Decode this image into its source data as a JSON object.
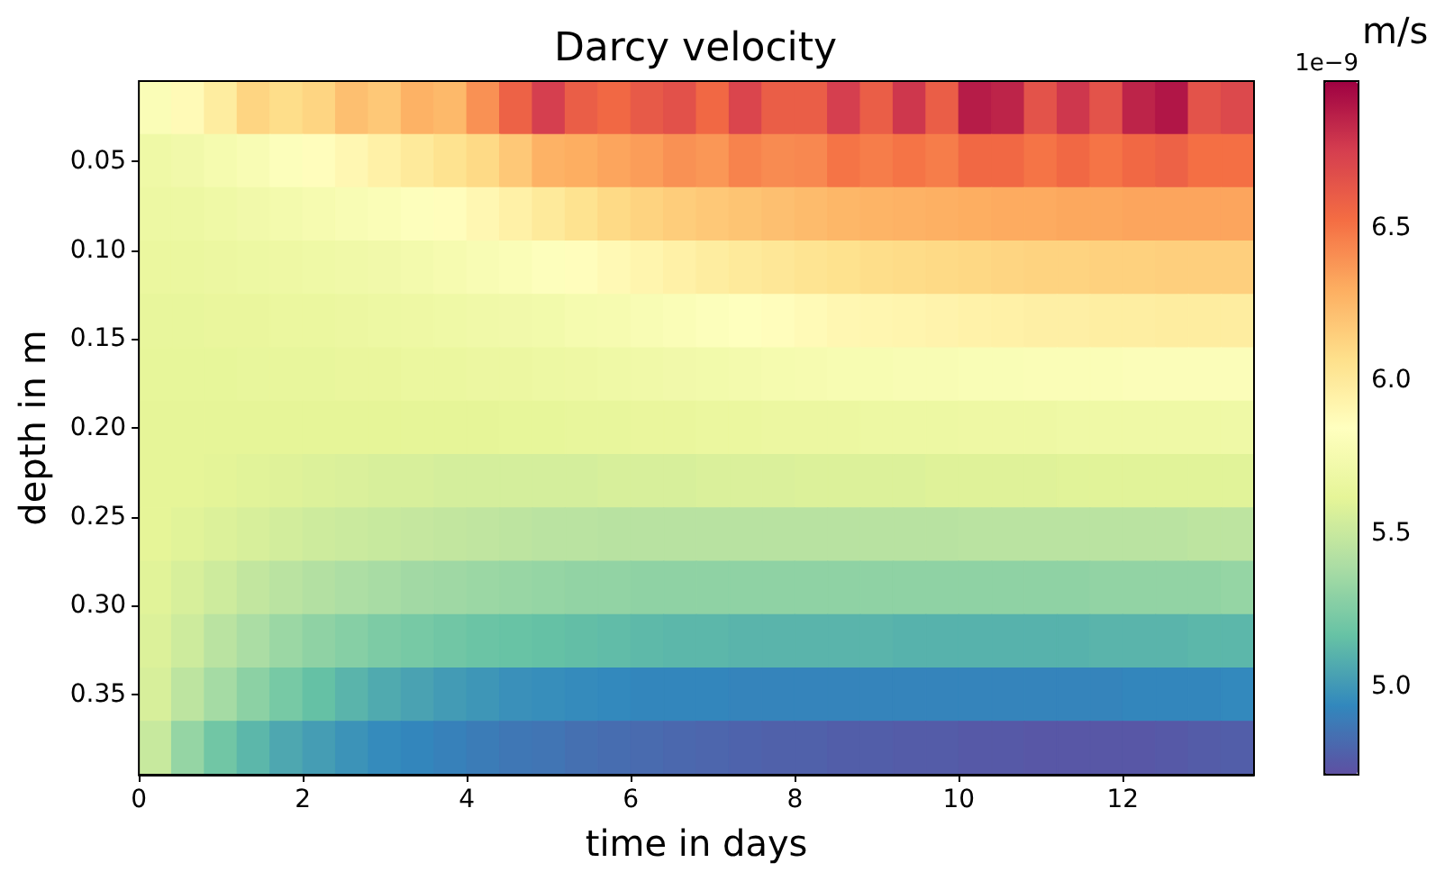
{
  "chart_data": {
    "type": "heatmap",
    "title": "Darcy velocity",
    "xlabel": "time in days",
    "ylabel": "depth in m",
    "clabel": "m/s",
    "annotations": [
      "1e−9"
    ],
    "x": [
      0.2,
      0.6,
      1.0,
      1.4,
      1.8,
      2.2,
      2.6,
      3.0,
      3.4,
      3.8,
      4.2,
      4.6,
      5.0,
      5.4,
      5.8,
      6.2,
      6.6,
      7.0,
      7.4,
      7.8,
      8.2,
      8.6,
      9.0,
      9.4,
      9.8,
      10.2,
      10.6,
      11.0,
      11.4,
      11.8,
      12.2,
      12.6,
      13.0,
      13.4
    ],
    "xlim": [
      0,
      13.6
    ],
    "xticks": [
      0,
      2,
      4,
      6,
      8,
      10,
      12
    ],
    "ylim": [
      0.395,
      0.005
    ],
    "yticks": [
      0.05,
      {
        "value": 0.1,
        "label": "0.10"
      },
      0.15,
      {
        "value": 0.2,
        "label": "0.20"
      },
      0.25,
      {
        "value": 0.3,
        "label": "0.30"
      },
      0.35
    ],
    "clim": [
      4.71,
      6.98
    ],
    "cticks": [
      {
        "value": 5,
        "label": "5.0"
      },
      5.5,
      {
        "value": 6,
        "label": "6.0"
      },
      6.5
    ],
    "cells": [
      [
        5.8,
        5.88,
        5.98,
        6.12,
        6.08,
        6.12,
        6.22,
        6.18,
        6.28,
        6.25,
        6.4,
        6.58,
        6.75,
        6.6,
        6.55,
        6.62,
        6.66,
        6.55,
        6.72,
        6.6,
        6.6,
        6.75,
        6.6,
        6.78,
        6.6,
        6.88,
        6.85,
        6.65,
        6.78,
        6.65,
        6.85,
        6.9,
        6.65,
        6.7
      ],
      [
        5.7,
        5.72,
        5.75,
        5.78,
        5.82,
        5.86,
        5.9,
        5.95,
        6.0,
        6.05,
        6.1,
        6.18,
        6.28,
        6.3,
        6.33,
        6.36,
        6.4,
        6.38,
        6.45,
        6.42,
        6.43,
        6.5,
        6.47,
        6.5,
        6.47,
        6.55,
        6.55,
        6.5,
        6.55,
        6.5,
        6.55,
        6.58,
        6.52,
        6.52
      ],
      [
        5.68,
        5.68,
        5.7,
        5.72,
        5.74,
        5.76,
        5.78,
        5.8,
        5.83,
        5.86,
        5.9,
        5.95,
        6.0,
        6.05,
        6.1,
        6.13,
        6.16,
        6.18,
        6.2,
        6.22,
        6.24,
        6.26,
        6.27,
        6.28,
        6.29,
        6.3,
        6.31,
        6.31,
        6.32,
        6.32,
        6.33,
        6.33,
        6.33,
        6.33
      ],
      [
        5.66,
        5.66,
        5.67,
        5.68,
        5.69,
        5.7,
        5.71,
        5.72,
        5.74,
        5.76,
        5.78,
        5.8,
        5.83,
        5.86,
        5.89,
        5.92,
        5.95,
        5.98,
        6.0,
        6.02,
        6.04,
        6.06,
        6.08,
        6.09,
        6.1,
        6.11,
        6.12,
        6.13,
        6.13,
        6.14,
        6.14,
        6.15,
        6.15,
        6.15
      ],
      [
        5.64,
        5.64,
        5.65,
        5.65,
        5.66,
        5.66,
        5.67,
        5.68,
        5.69,
        5.7,
        5.71,
        5.72,
        5.73,
        5.75,
        5.76,
        5.78,
        5.8,
        5.82,
        5.84,
        5.86,
        5.88,
        5.9,
        5.91,
        5.92,
        5.93,
        5.94,
        5.95,
        5.96,
        5.96,
        5.97,
        5.97,
        5.98,
        5.98,
        5.98
      ],
      [
        5.63,
        5.63,
        5.63,
        5.64,
        5.64,
        5.64,
        5.65,
        5.65,
        5.66,
        5.66,
        5.67,
        5.67,
        5.68,
        5.69,
        5.7,
        5.71,
        5.72,
        5.73,
        5.74,
        5.75,
        5.76,
        5.77,
        5.77,
        5.78,
        5.78,
        5.79,
        5.79,
        5.8,
        5.8,
        5.8,
        5.81,
        5.81,
        5.81,
        5.81
      ],
      [
        5.62,
        5.62,
        5.62,
        5.62,
        5.62,
        5.62,
        5.62,
        5.62,
        5.62,
        5.62,
        5.62,
        5.63,
        5.63,
        5.64,
        5.64,
        5.65,
        5.65,
        5.66,
        5.66,
        5.67,
        5.67,
        5.67,
        5.68,
        5.68,
        5.68,
        5.69,
        5.69,
        5.69,
        5.7,
        5.7,
        5.7,
        5.7,
        5.7,
        5.7
      ],
      [
        5.62,
        5.62,
        5.61,
        5.6,
        5.59,
        5.58,
        5.57,
        5.56,
        5.56,
        5.55,
        5.55,
        5.55,
        5.55,
        5.55,
        5.56,
        5.56,
        5.56,
        5.57,
        5.57,
        5.57,
        5.58,
        5.58,
        5.58,
        5.58,
        5.59,
        5.59,
        5.59,
        5.59,
        5.6,
        5.6,
        5.6,
        5.6,
        5.6,
        5.6
      ],
      [
        5.62,
        5.6,
        5.58,
        5.56,
        5.54,
        5.52,
        5.51,
        5.5,
        5.49,
        5.48,
        5.47,
        5.46,
        5.45,
        5.45,
        5.44,
        5.44,
        5.44,
        5.44,
        5.44,
        5.44,
        5.44,
        5.44,
        5.44,
        5.44,
        5.44,
        5.45,
        5.45,
        5.45,
        5.45,
        5.45,
        5.45,
        5.45,
        5.46,
        5.46
      ],
      [
        5.6,
        5.56,
        5.52,
        5.48,
        5.45,
        5.42,
        5.4,
        5.38,
        5.36,
        5.35,
        5.34,
        5.33,
        5.32,
        5.31,
        5.31,
        5.3,
        5.3,
        5.3,
        5.3,
        5.3,
        5.3,
        5.3,
        5.3,
        5.3,
        5.3,
        5.3,
        5.3,
        5.3,
        5.3,
        5.31,
        5.31,
        5.31,
        5.31,
        5.32
      ],
      [
        5.58,
        5.52,
        5.45,
        5.39,
        5.34,
        5.3,
        5.27,
        5.24,
        5.22,
        5.2,
        5.18,
        5.17,
        5.16,
        5.15,
        5.14,
        5.13,
        5.12,
        5.12,
        5.11,
        5.11,
        5.11,
        5.11,
        5.11,
        5.1,
        5.1,
        5.1,
        5.1,
        5.1,
        5.1,
        5.11,
        5.11,
        5.11,
        5.12,
        5.12
      ],
      [
        5.56,
        5.46,
        5.37,
        5.29,
        5.22,
        5.16,
        5.11,
        5.07,
        5.04,
        5.01,
        4.99,
        4.97,
        4.96,
        4.95,
        4.94,
        4.93,
        4.93,
        4.93,
        4.92,
        4.92,
        4.92,
        4.92,
        4.92,
        4.92,
        4.92,
        4.92,
        4.92,
        4.92,
        4.92,
        4.92,
        4.93,
        4.93,
        4.93,
        4.94
      ],
      [
        5.5,
        5.32,
        5.2,
        5.12,
        5.06,
        5.02,
        4.98,
        4.95,
        4.93,
        4.91,
        4.89,
        4.87,
        4.86,
        4.84,
        4.83,
        4.82,
        4.81,
        4.8,
        4.79,
        4.78,
        4.78,
        4.77,
        4.77,
        4.76,
        4.76,
        4.75,
        4.75,
        4.74,
        4.74,
        4.74,
        4.74,
        4.75,
        4.76,
        4.77
      ]
    ]
  }
}
